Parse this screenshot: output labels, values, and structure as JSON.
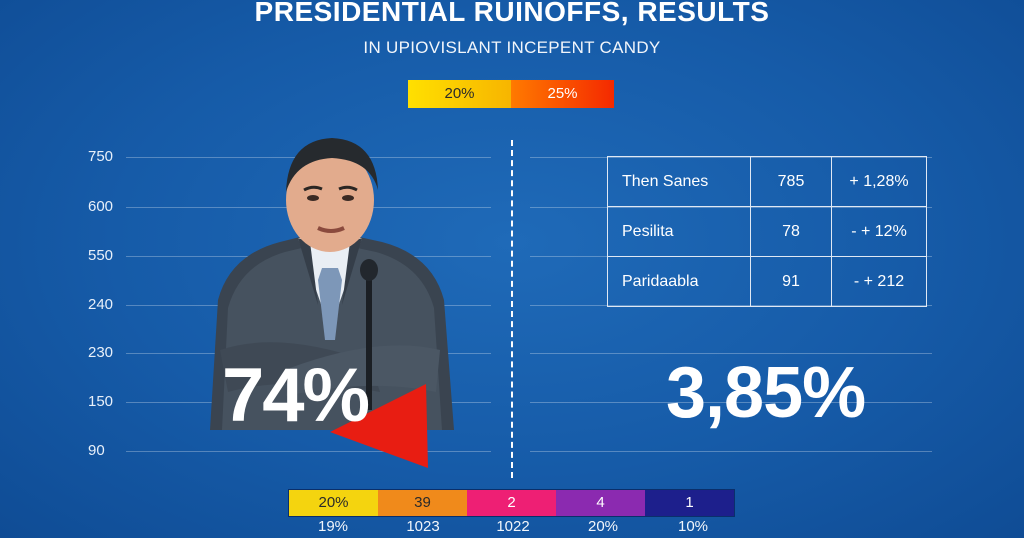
{
  "header": {
    "title": "PRESIDENTIAL RUINOFFS, RESULTS",
    "subtitle": "IN UPIOVISLANT INCEPENT CANDY"
  },
  "top_legend": [
    {
      "label": "20%",
      "color": "#ffd000"
    },
    {
      "label": "25%",
      "color": "#f53a00"
    }
  ],
  "y_axis": {
    "labels": [
      "750",
      "600",
      "550",
      "240",
      "230",
      "150",
      "90"
    ]
  },
  "left_panel": {
    "big_value": "74%"
  },
  "table": {
    "rows": [
      {
        "name": "Then Sanes",
        "value": "785",
        "change": "+ 1,28%"
      },
      {
        "name": "Pesilita",
        "value": "78",
        "change": "- + 12%"
      },
      {
        "name": "Paridaabla",
        "value": "91",
        "change": "- + 212"
      }
    ]
  },
  "right_panel": {
    "big_value": "3,85%"
  },
  "bottom_bar": {
    "segments": [
      {
        "label": "20%",
        "sub": "19%",
        "color": "#f4d40f"
      },
      {
        "label": "39",
        "sub": "1023",
        "color": "#f08a1b"
      },
      {
        "label": "2",
        "sub": "1022",
        "color": "#ee1f74"
      },
      {
        "label": "4",
        "sub": "20%",
        "color": "#8b2ab0"
      },
      {
        "label": "1",
        "sub": "10%",
        "color": "#1d1f8c"
      }
    ]
  },
  "icons": {
    "person": "person-photo",
    "flag": "red-flag-shape"
  }
}
